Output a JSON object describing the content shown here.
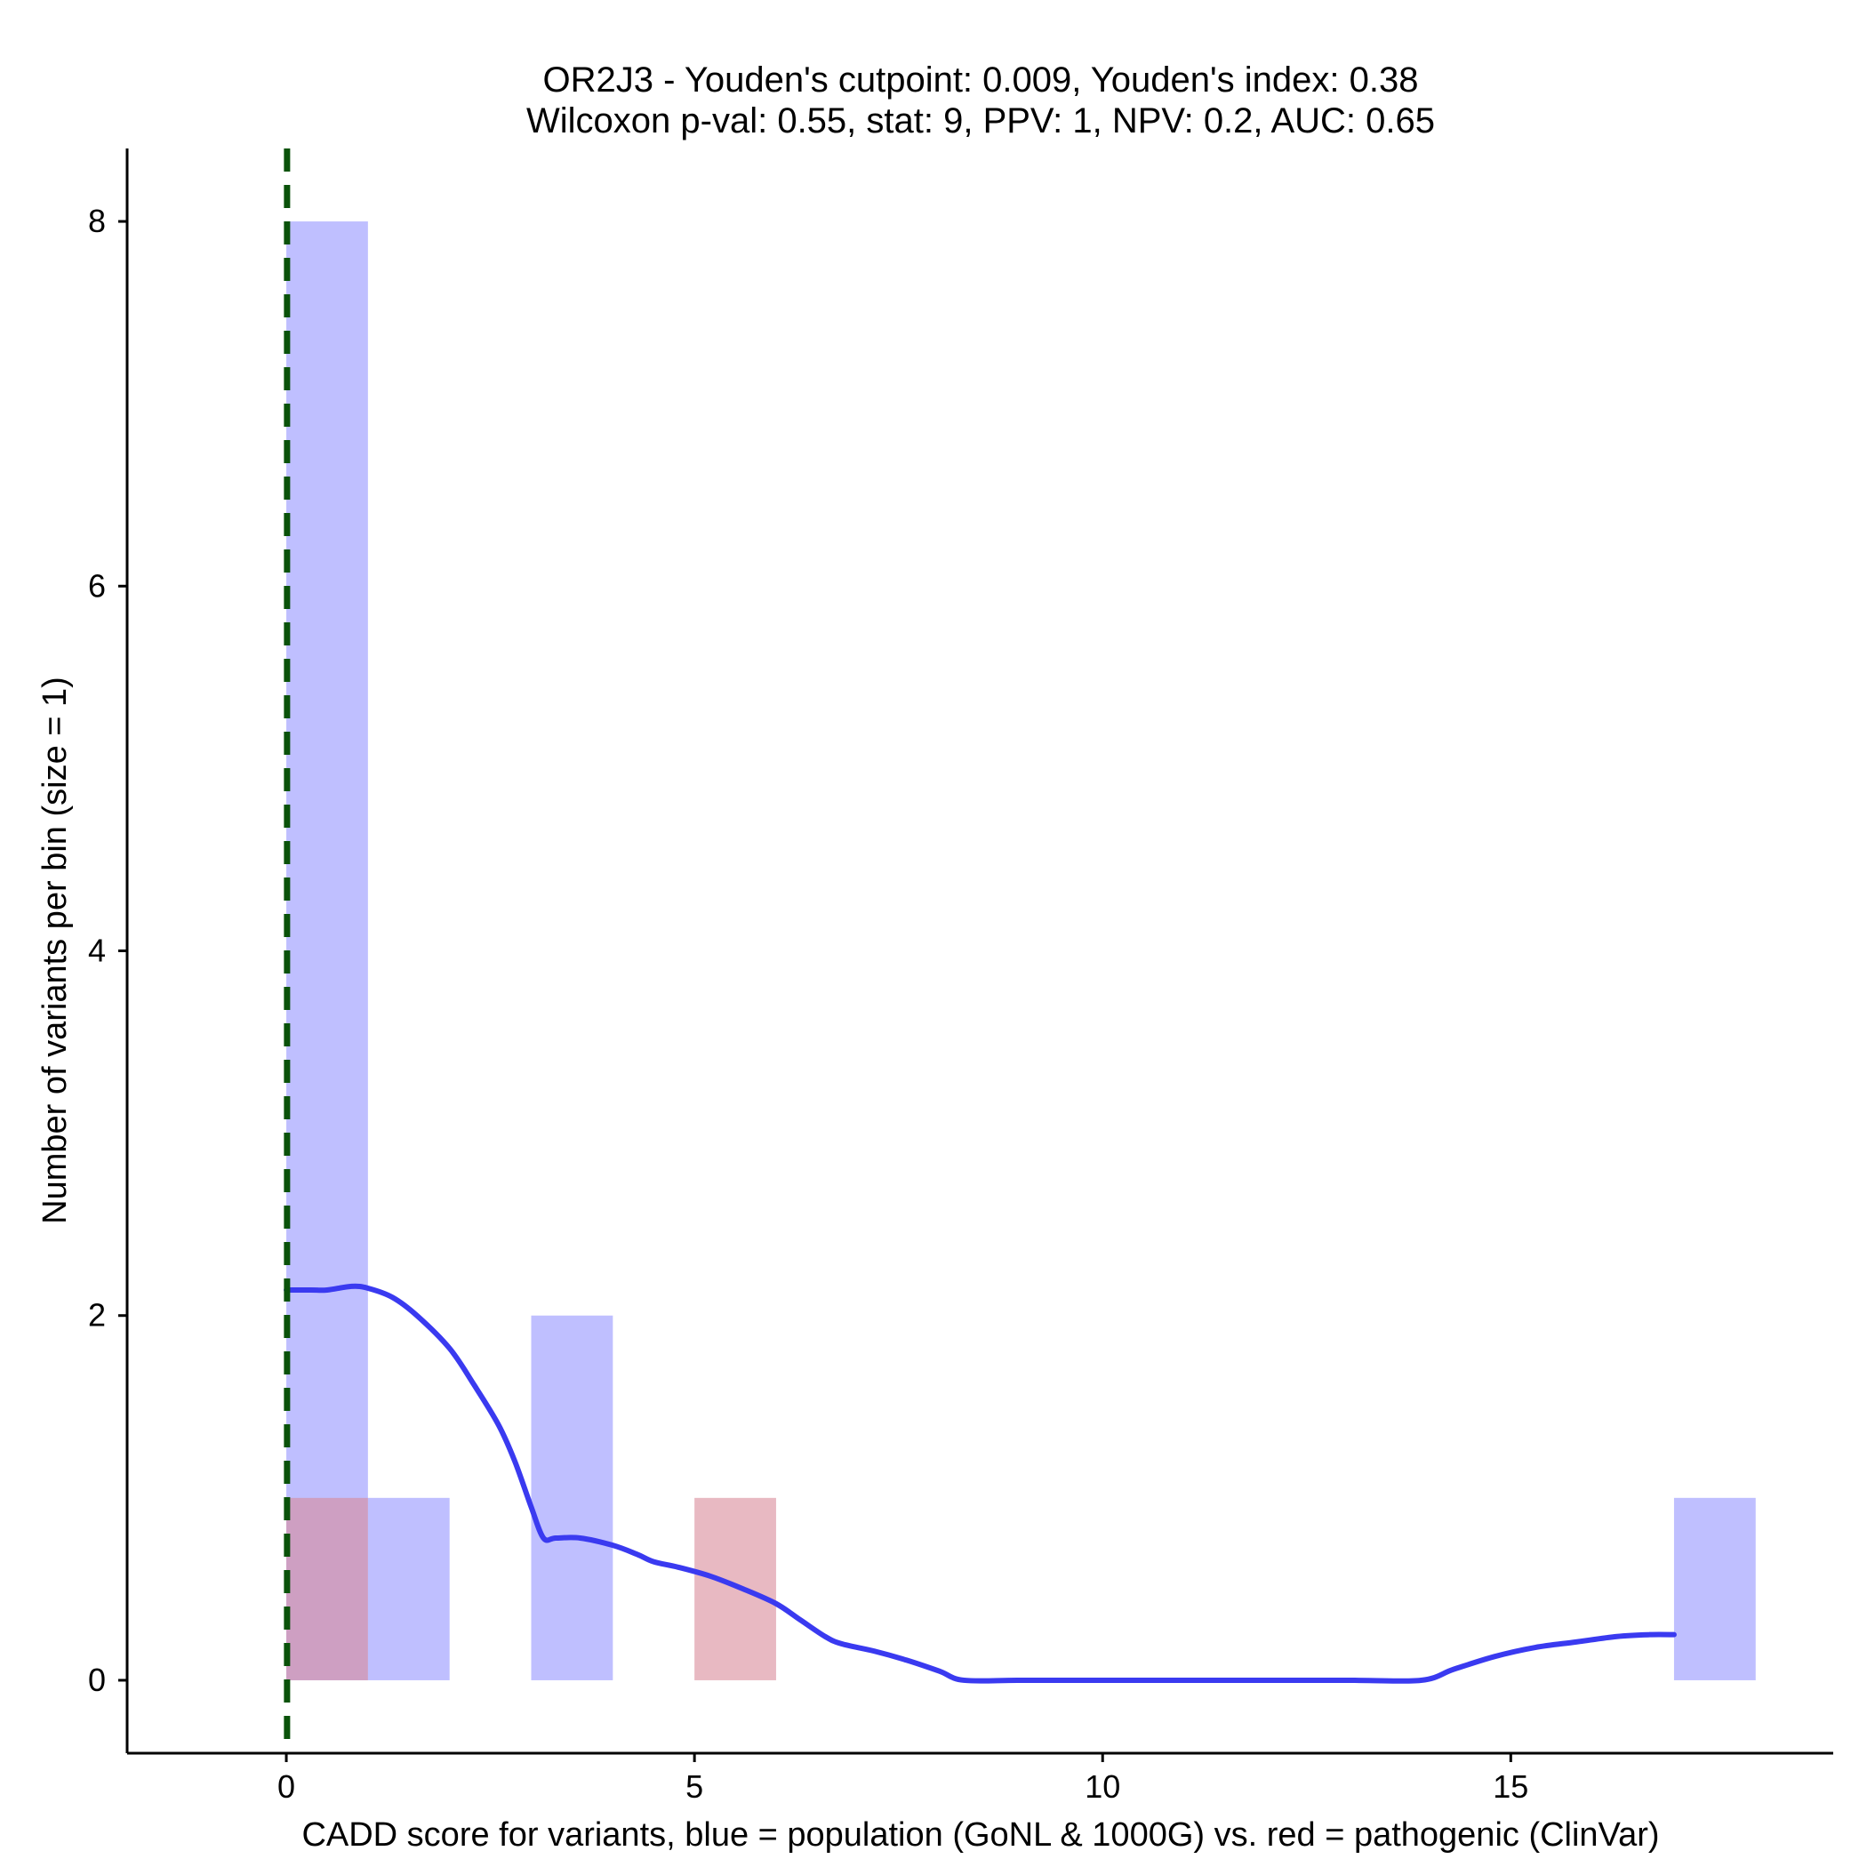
{
  "chart_data": {
    "type": "histogram",
    "title_lines": [
      "OR2J3 - Youden's cutpoint: 0.009, Youden's index: 0.38",
      "Wilcoxon p-val: 0.55, stat: 9, PPV: 1, NPV: 0.2, AUC: 0.65"
    ],
    "xlabel": "CADD score for variants, blue = population (GoNL & 1000G) vs. red = pathogenic (ClinVar)",
    "ylabel": "Number of variants per bin (size = 1)",
    "xlim": [
      -1.95,
      18.95
    ],
    "ylim": [
      -0.4,
      8.4
    ],
    "x_ticks": [
      0,
      5,
      10,
      15
    ],
    "y_ticks": [
      0,
      2,
      4,
      6,
      8
    ],
    "bin_size": 1,
    "series": [
      {
        "name": "population (GoNL & 1000G)",
        "color": "#8080ff",
        "bins": [
          {
            "start": 0,
            "end": 1,
            "count": 8
          },
          {
            "start": 1,
            "end": 2,
            "count": 1
          },
          {
            "start": 3,
            "end": 4,
            "count": 2
          },
          {
            "start": 17,
            "end": 18,
            "count": 1
          }
        ]
      },
      {
        "name": "pathogenic (ClinVar)",
        "color": "#d98a99",
        "bins": [
          {
            "start": 0,
            "end": 1,
            "count": 1
          },
          {
            "start": 5,
            "end": 6,
            "count": 1
          }
        ]
      }
    ],
    "density_curve": {
      "name": "population density",
      "color": "#3a3af0",
      "points": [
        [
          0,
          2.14
        ],
        [
          0.3,
          2.14
        ],
        [
          0.5,
          2.14
        ],
        [
          0.8,
          2.16
        ],
        [
          1.0,
          2.15
        ],
        [
          1.3,
          2.1
        ],
        [
          1.6,
          2.0
        ],
        [
          2.0,
          1.82
        ],
        [
          2.3,
          1.62
        ],
        [
          2.6,
          1.4
        ],
        [
          2.8,
          1.2
        ],
        [
          3.0,
          0.95
        ],
        [
          3.15,
          0.78
        ],
        [
          3.3,
          0.78
        ],
        [
          3.6,
          0.78
        ],
        [
          4.0,
          0.74
        ],
        [
          4.3,
          0.69
        ],
        [
          4.5,
          0.65
        ],
        [
          4.8,
          0.62
        ],
        [
          5.2,
          0.57
        ],
        [
          5.6,
          0.5
        ],
        [
          6.0,
          0.42
        ],
        [
          6.3,
          0.33
        ],
        [
          6.6,
          0.24
        ],
        [
          6.8,
          0.2
        ],
        [
          7.2,
          0.16
        ],
        [
          7.6,
          0.11
        ],
        [
          8.0,
          0.05
        ],
        [
          8.3,
          0.0
        ],
        [
          9.0,
          0.0
        ],
        [
          10,
          0.0
        ],
        [
          11,
          0.0
        ],
        [
          12,
          0.0
        ],
        [
          13,
          0.0
        ],
        [
          13.9,
          0.0
        ],
        [
          14.3,
          0.06
        ],
        [
          14.8,
          0.13
        ],
        [
          15.3,
          0.18
        ],
        [
          15.8,
          0.21
        ],
        [
          16.3,
          0.24
        ],
        [
          16.7,
          0.25
        ],
        [
          17.0,
          0.25
        ]
      ]
    },
    "cutpoint_line": {
      "x": 0.009,
      "color": "#0a520a",
      "style": "dashed"
    }
  }
}
